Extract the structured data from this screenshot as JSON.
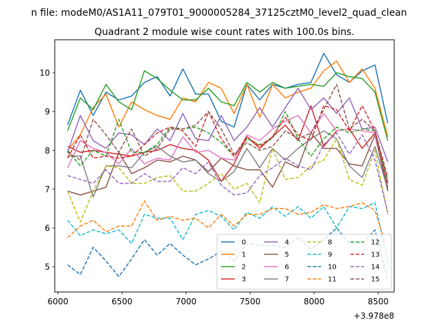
{
  "chart_data": {
    "type": "line",
    "title": "n file: modeM0/AS1A11_079T01_9000005284_37125cztM0_level2_quad_clean",
    "subtitle": "Quadrant 2 module wise count rates with 100.0s bins.",
    "xlabel": "",
    "ylabel": "",
    "x_offset_label": "+3.978e8",
    "xlim": [
      5975,
      8625
    ],
    "ylim": [
      4.35,
      10.85
    ],
    "xticks": [
      6000,
      6500,
      7000,
      7500,
      8000,
      8500
    ],
    "yticks": [
      5,
      6,
      7,
      8,
      9,
      10
    ],
    "legend_position": "lower-right",
    "grid": false,
    "x": [
      6075,
      6175,
      6275,
      6375,
      6475,
      6575,
      6675,
      6775,
      6875,
      6975,
      7075,
      7175,
      7275,
      7375,
      7475,
      7575,
      7675,
      7775,
      7875,
      7975,
      8075,
      8175,
      8275,
      8375,
      8475,
      8575
    ],
    "series": [
      {
        "name": "0",
        "color": "#1f77b4",
        "dash": "solid",
        "values": [
          8.65,
          9.55,
          8.9,
          9.5,
          9.3,
          9.4,
          9.75,
          9.9,
          9.4,
          10.1,
          9.45,
          9.45,
          8.75,
          8.6,
          9.7,
          9.3,
          9.7,
          9.6,
          9.7,
          9.75,
          10.5,
          9.95,
          9.75,
          10.05,
          10.2,
          8.7
        ]
      },
      {
        "name": "1",
        "color": "#ff7f0e",
        "dash": "solid",
        "values": [
          8.0,
          8.4,
          9.1,
          9.45,
          8.6,
          9.25,
          9.05,
          8.9,
          8.8,
          9.35,
          9.25,
          9.75,
          9.6,
          8.95,
          9.7,
          8.85,
          9.7,
          9.35,
          9.5,
          9.6,
          10.05,
          10.3,
          9.75,
          10.1,
          9.6,
          8.35
        ]
      },
      {
        "name": "2",
        "color": "#2ca02c",
        "dash": "solid",
        "values": [
          8.5,
          9.35,
          9.05,
          9.7,
          9.25,
          9.05,
          10.05,
          9.85,
          9.55,
          9.3,
          9.3,
          9.6,
          9.25,
          9.15,
          9.75,
          9.5,
          9.75,
          9.6,
          9.65,
          9.7,
          9.65,
          10.0,
          9.9,
          9.85,
          9.5,
          8.25
        ]
      },
      {
        "name": "3",
        "color": "#d62728",
        "dash": "solid",
        "values": [
          8.1,
          7.95,
          8.0,
          7.95,
          7.9,
          7.85,
          7.95,
          8.0,
          8.15,
          8.05,
          8.0,
          7.75,
          7.2,
          7.65,
          8.35,
          8.05,
          8.35,
          8.65,
          8.25,
          9.15,
          8.1,
          8.5,
          8.55,
          8.05,
          8.45,
          7.15
        ]
      },
      {
        "name": "4",
        "color": "#9467bd",
        "dash": "solid",
        "values": [
          7.95,
          8.9,
          8.25,
          8.05,
          8.45,
          8.4,
          8.15,
          8.55,
          8.25,
          8.95,
          8.3,
          8.25,
          8.9,
          8.25,
          8.6,
          9.1,
          8.6,
          9.1,
          9.6,
          9.05,
          9.35,
          8.95,
          9.35,
          8.55,
          8.6,
          7.7
        ]
      },
      {
        "name": "5",
        "color": "#8c564b",
        "dash": "solid",
        "values": [
          6.95,
          6.85,
          6.95,
          7.05,
          7.95,
          7.4,
          7.55,
          7.75,
          7.7,
          7.85,
          7.75,
          7.45,
          7.8,
          7.6,
          7.5,
          7.5,
          7.05,
          7.7,
          7.55,
          8.45,
          8.05,
          8.05,
          7.65,
          7.6,
          8.4,
          6.95
        ]
      },
      {
        "name": "6",
        "color": "#e377c2",
        "dash": "solid",
        "values": [
          7.55,
          8.25,
          8.05,
          7.95,
          7.65,
          8.05,
          7.65,
          7.8,
          7.75,
          8.35,
          7.95,
          8.0,
          7.8,
          7.75,
          8.4,
          8.25,
          8.55,
          8.75,
          8.9,
          8.45,
          8.95,
          8.5,
          8.55,
          8.5,
          8.45,
          7.05
        ]
      },
      {
        "name": "7",
        "color": "#7f7f7f",
        "dash": "solid",
        "values": [
          7.85,
          7.85,
          6.8,
          7.6,
          7.6,
          7.55,
          7.95,
          8.1,
          7.85,
          7.7,
          7.75,
          7.4,
          7.2,
          7.45,
          8.05,
          7.55,
          8.05,
          7.75,
          8.05,
          8.3,
          8.5,
          8.3,
          7.6,
          7.3,
          8.1,
          7.0
        ]
      },
      {
        "name": "8",
        "color": "#bcbd22",
        "dash": "dashed",
        "values": [
          6.95,
          6.15,
          6.95,
          7.6,
          7.55,
          7.15,
          7.15,
          7.3,
          7.35,
          6.95,
          6.95,
          7.15,
          7.4,
          7.0,
          7.15,
          6.65,
          8.05,
          7.25,
          7.3,
          7.6,
          7.75,
          8.3,
          7.25,
          7.1,
          8.0,
          6.35
        ]
      },
      {
        "name": "9",
        "color": "#17becf",
        "dash": "dashed",
        "values": [
          6.2,
          5.8,
          5.95,
          5.85,
          5.95,
          5.6,
          6.35,
          6.25,
          6.25,
          5.7,
          6.35,
          6.45,
          6.3,
          5.95,
          6.4,
          6.25,
          6.55,
          6.3,
          6.55,
          6.25,
          6.55,
          6.0,
          6.55,
          6.5,
          6.65,
          5.1
        ]
      },
      {
        "name": "10",
        "color": "#1f77b4",
        "dash": "dashed",
        "values": [
          5.05,
          4.8,
          5.5,
          5.15,
          4.75,
          5.2,
          5.7,
          5.3,
          5.6,
          5.3,
          5.05,
          5.2,
          5.4,
          5.15,
          5.6,
          5.55,
          5.55,
          5.5,
          5.75,
          5.45,
          5.7,
          6.0,
          5.6,
          5.6,
          5.95,
          4.65
        ]
      },
      {
        "name": "11",
        "color": "#ff7f0e",
        "dash": "dashed",
        "values": [
          5.75,
          6.05,
          6.2,
          5.9,
          6.05,
          6.05,
          6.7,
          6.2,
          6.3,
          6.2,
          6.25,
          6.0,
          6.35,
          6.05,
          6.35,
          6.35,
          6.5,
          6.5,
          6.35,
          6.4,
          6.6,
          6.5,
          6.55,
          6.65,
          6.45,
          5.4
        ]
      },
      {
        "name": "12",
        "color": "#2ca02c",
        "dash": "dashed",
        "values": [
          8.0,
          7.6,
          8.0,
          7.85,
          8.8,
          7.95,
          7.95,
          8.15,
          8.6,
          8.55,
          8.6,
          8.45,
          8.2,
          7.85,
          8.3,
          8.15,
          8.3,
          9.0,
          8.3,
          7.85,
          8.3,
          8.6,
          8.45,
          8.55,
          8.5,
          7.2
        ]
      },
      {
        "name": "13",
        "color": "#d62728",
        "dash": "dashed",
        "values": [
          7.8,
          8.4,
          7.8,
          7.85,
          7.8,
          7.85,
          8.15,
          8.45,
          8.6,
          8.5,
          8.1,
          9.0,
          8.3,
          7.85,
          8.35,
          8.1,
          8.35,
          8.85,
          8.4,
          8.25,
          9.15,
          9.05,
          8.5,
          9.15,
          8.5,
          7.3
        ]
      },
      {
        "name": "14",
        "color": "#9467bd",
        "dash": "dashed",
        "values": [
          7.35,
          7.25,
          7.15,
          7.5,
          7.15,
          7.15,
          7.4,
          7.2,
          7.2,
          7.55,
          7.4,
          7.7,
          7.1,
          6.85,
          6.9,
          7.35,
          7.55,
          7.8,
          7.6,
          7.5,
          8.15,
          8.45,
          7.9,
          8.4,
          7.75,
          6.4
        ]
      },
      {
        "name": "15",
        "color": "#8c564b",
        "dash": "dashed",
        "values": [
          7.95,
          7.75,
          8.8,
          8.4,
          7.95,
          8.55,
          7.85,
          8.05,
          8.55,
          8.55,
          8.65,
          9.0,
          8.55,
          7.9,
          8.2,
          8.0,
          8.1,
          8.5,
          8.3,
          8.45,
          9.05,
          9.7,
          8.55,
          8.8,
          8.5,
          7.0
        ]
      }
    ]
  }
}
